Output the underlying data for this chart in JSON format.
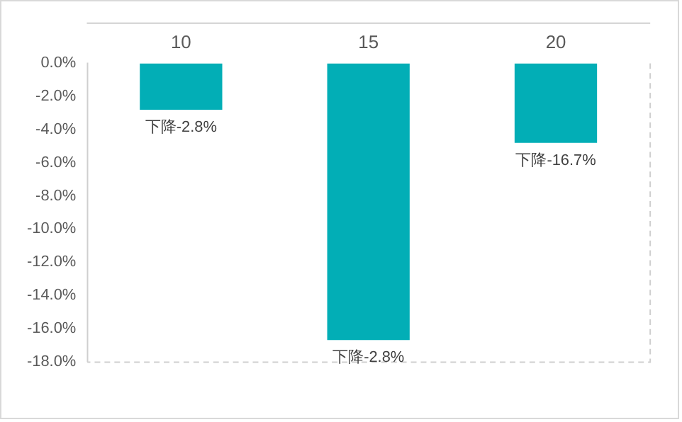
{
  "chart_data": {
    "type": "bar",
    "categories": [
      "10",
      "15",
      "20"
    ],
    "values": [
      -2.8,
      -16.7,
      -4.8
    ],
    "color": "#02aeb6",
    "value_labels": [
      "下降-2.8%",
      "下降-2.8%",
      "下降-16.7%"
    ],
    "ylim": [
      -18,
      0
    ],
    "yticks": [
      {
        "value": 0,
        "label": "0.0%"
      },
      {
        "value": -2,
        "label": "-2.0%"
      },
      {
        "value": -4,
        "label": "-4.0%"
      },
      {
        "value": -6,
        "label": "-6.0%"
      },
      {
        "value": -8,
        "label": "-8.0%"
      },
      {
        "value": -10,
        "label": "-10.0%"
      },
      {
        "value": -12,
        "label": "-12.0%"
      },
      {
        "value": -14,
        "label": "-14.0%"
      },
      {
        "value": -16,
        "label": "-16.0%"
      },
      {
        "value": -18,
        "label": "-18.0%"
      }
    ],
    "grid": false,
    "legend": false
  }
}
